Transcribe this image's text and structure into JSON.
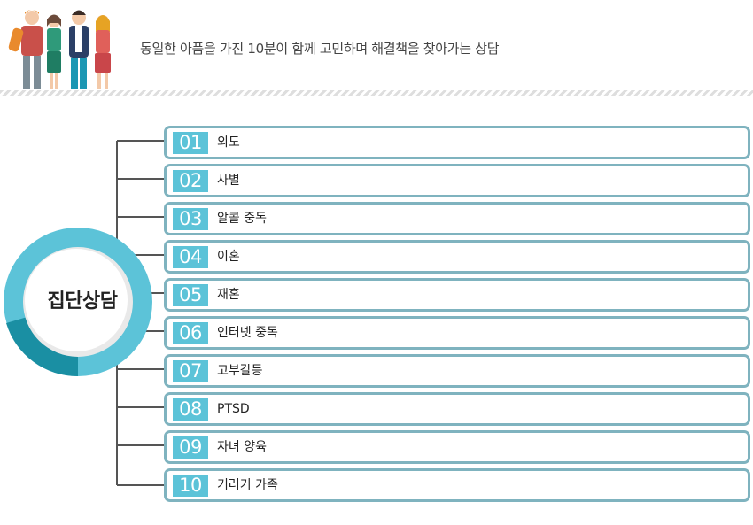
{
  "header": {
    "tagline": "동일한 아픔을 가진 10분이 함께 고민하며 해결책을 찾아가는 상담"
  },
  "center": {
    "title": "집단상담"
  },
  "items": [
    {
      "num": "01",
      "label": "외도"
    },
    {
      "num": "02",
      "label": "사별"
    },
    {
      "num": "03",
      "label": "알콜 중독"
    },
    {
      "num": "04",
      "label": "이혼"
    },
    {
      "num": "05",
      "label": "재혼"
    },
    {
      "num": "06",
      "label": "인터넷 중독"
    },
    {
      "num": "07",
      "label": "고부갈등"
    },
    {
      "num": "08",
      "label": "PTSD"
    },
    {
      "num": "09",
      "label": "자녀 양육"
    },
    {
      "num": "10",
      "label": "기러기 가족"
    }
  ],
  "colors": {
    "accent": "#5cc3d8",
    "accent_dark": "#1a8fa3",
    "border": "#7fb3bf",
    "line": "#555555"
  }
}
